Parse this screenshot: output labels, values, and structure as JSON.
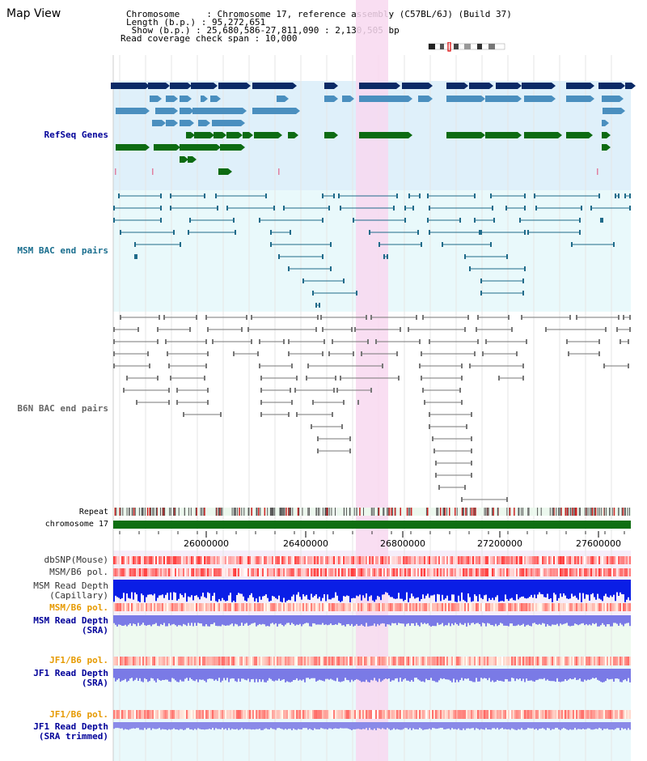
{
  "title": "Map View",
  "info": {
    "chromosome_label": "Chromosome     : Chromosome 17, reference assembly (C57BL/6J) (Build 37)",
    "length_label": "Length (b.p.) : 95,272,651",
    "show_label": " Show (b.p.) : 25,680,586-27,811,090 : 2,130,505 bp",
    "coverage_label": "Read coverage check span : 10,000"
  },
  "tracks": {
    "refseq": "RefSeq Genes",
    "msm_bac": "MSM BAC end pairs",
    "b6n_bac": "B6N BAC end pairs",
    "repeat": "Repeat",
    "chromosome": "chromosome 17",
    "dbsnp": "dbSNP(Mouse)",
    "msm_b6_pol": "MSM/B6 pol.",
    "msm_depth_cap_1": "MSM Read Depth",
    "msm_depth_cap_2": "(Capillary)",
    "msm_b6_pol2": "MSM/B6 pol.",
    "msm_depth_sra_1": "MSM Read Depth",
    "msm_depth_sra_2": "(SRA)",
    "jf1_b6_pol": "JF1/B6 pol.",
    "jf1_depth_1": "JF1 Read Depth",
    "jf1_depth_2": "(SRA)",
    "jf1_b6_pol2": "JF1/B6 pol.",
    "jf1_trim_1": "JF1 Read Depth",
    "jf1_trim_2": "(SRA trimmed)"
  },
  "axis_ticks": [
    "26000000",
    "26400000",
    "26800000",
    "27200000",
    "27600000"
  ],
  "colors": {
    "highlight": "#f8d8f0",
    "refseq_bg": "#dff0fa",
    "msm_bg": "#e9f9fb",
    "gene_dark": "#0b2a66",
    "gene_mid": "#4a8fbf",
    "gene_green": "#0d6b12",
    "bac_msm": "#1f6b8a",
    "bac_b6n": "#777777",
    "chromosome_bar": "#0f6f12",
    "label_blue": "#000099",
    "label_teal": "#1a6e8e",
    "label_gray": "#666666",
    "label_orange": "#e69a00",
    "label_red": "#cc0000"
  }
}
